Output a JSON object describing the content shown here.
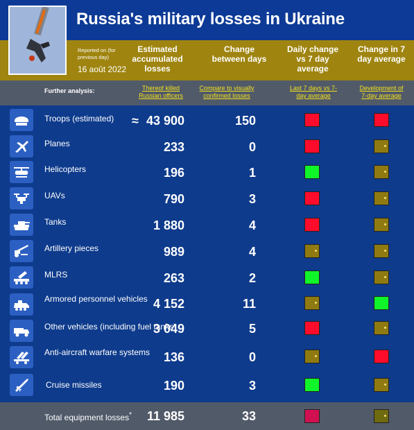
{
  "title": "Russia's military losses in Ukraine",
  "reported_note": "Reported on (for previous day)",
  "reported_date": "16 août 2022",
  "headers": {
    "estimated": "Estimated accumulated losses",
    "change": "Change between days",
    "daily": "Daily change vs 7 day average",
    "seven_day": "Change in 7 day average"
  },
  "further": {
    "label": "Further analysis:",
    "officers": "Thereof killed Russian officers",
    "confirmed": "Compare to visually confirmed losses",
    "last7": "Last 7 days vs 7-day average",
    "development": "Development of 7-day average"
  },
  "colors": {
    "red": "#ff0b2b",
    "green": "#10f52a",
    "olive": "#8e7a10",
    "crimson": "#d01050",
    "olive_dark": "#6e6a10"
  },
  "rows": [
    {
      "icon": "helmet-icon",
      "label": "Troops (estimated)",
      "approx": "≈",
      "value": "43 900",
      "change": "150",
      "daily": "red",
      "seven": "red"
    },
    {
      "icon": "plane-icon",
      "label": "Planes",
      "value": "233",
      "change": "0",
      "daily": "red",
      "seven": "olive"
    },
    {
      "icon": "helicopter-icon",
      "label": "Helicopters",
      "value": "196",
      "change": "1",
      "daily": "green",
      "seven": "olive"
    },
    {
      "icon": "drone-icon",
      "label": "UAVs",
      "value": "790",
      "change": "3",
      "daily": "red",
      "seven": "olive"
    },
    {
      "icon": "tank-icon",
      "label": "Tanks",
      "value": "1 880",
      "change": "4",
      "daily": "red",
      "seven": "olive"
    },
    {
      "icon": "artillery-icon",
      "label": "Artillery pieces",
      "value": "989",
      "change": "4",
      "daily": "olive",
      "seven": "olive"
    },
    {
      "icon": "mlrs-icon",
      "label": "MLRS",
      "value": "263",
      "change": "2",
      "daily": "green",
      "seven": "olive"
    },
    {
      "icon": "apc-icon",
      "label": "Armored personnel vehicles",
      "value": "4 152",
      "change": "11",
      "daily": "olive",
      "seven": "green"
    },
    {
      "icon": "truck-icon",
      "label": "Other vehicles (including fuel tanks)",
      "value": "3 049",
      "change": "5",
      "daily": "red",
      "seven": "olive"
    },
    {
      "icon": "anti-aircraft-icon",
      "label": "Anti-aircraft warfare systems",
      "value": "136",
      "change": "0",
      "daily": "olive",
      "seven": "red"
    },
    {
      "icon": "missile-icon",
      "label": "Cruise missiles",
      "value": "190",
      "change": "3",
      "daily": "green",
      "seven": "olive"
    }
  ],
  "total": {
    "label": "Total equipment losses",
    "footnote": "*",
    "value": "11 985",
    "change": "33",
    "daily": "crimson",
    "seven": "olive_dark"
  }
}
